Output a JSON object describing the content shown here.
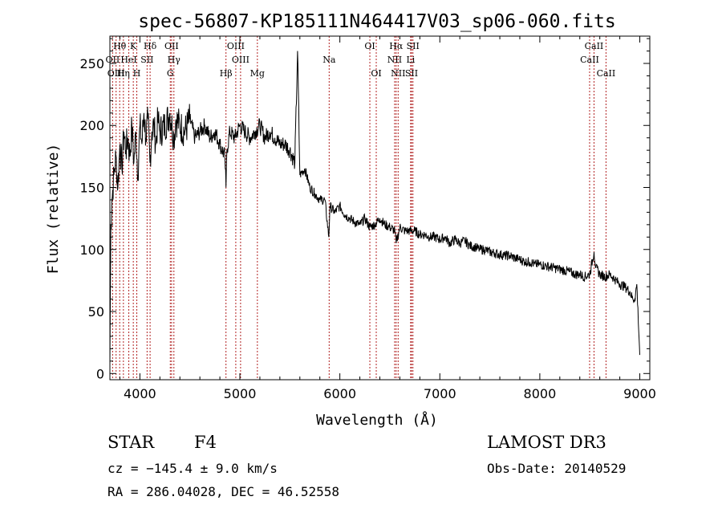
{
  "chart_data": {
    "type": "line",
    "title": "spec-56807-KP185111N464417V03_sp06-060.fits",
    "xlabel": "Wavelength (Å)",
    "ylabel": "Flux (relative)",
    "xlim": [
      3700,
      9100
    ],
    "ylim": [
      -5,
      272
    ],
    "x_ticks": [
      4000,
      5000,
      6000,
      7000,
      8000,
      9000
    ],
    "y_ticks": [
      0,
      50,
      100,
      150,
      200,
      250
    ],
    "series": [
      {
        "name": "flux",
        "x": [
          3700,
          3710,
          3720,
          3740,
          3760,
          3780,
          3800,
          3820,
          3840,
          3860,
          3880,
          3900,
          3920,
          3940,
          3960,
          3980,
          4000,
          4020,
          4040,
          4060,
          4080,
          4100,
          4120,
          4140,
          4160,
          4180,
          4200,
          4250,
          4300,
          4340,
          4360,
          4400,
          4450,
          4500,
          4550,
          4600,
          4650,
          4700,
          4750,
          4800,
          4850,
          4861,
          4870,
          4900,
          4950,
          5000,
          5050,
          5100,
          5150,
          5200,
          5250,
          5300,
          5350,
          5400,
          5450,
          5500,
          5550,
          5577,
          5600,
          5650,
          5700,
          5750,
          5800,
          5850,
          5890,
          5900,
          5950,
          6000,
          6050,
          6100,
          6150,
          6200,
          6250,
          6300,
          6350,
          6400,
          6450,
          6500,
          6550,
          6563,
          6600,
          6650,
          6700,
          6750,
          6800,
          6850,
          6900,
          6950,
          7000,
          7050,
          7100,
          7150,
          7200,
          7250,
          7300,
          7350,
          7400,
          7450,
          7500,
          7550,
          7600,
          7650,
          7700,
          7750,
          7800,
          7850,
          7900,
          7950,
          8000,
          8050,
          8100,
          8150,
          8200,
          8250,
          8300,
          8350,
          8400,
          8450,
          8500,
          8542,
          8560,
          8600,
          8650,
          8700,
          8750,
          8800,
          8850,
          8900,
          8930,
          8950,
          8970,
          9000
        ],
        "values": [
          10,
          120,
          140,
          160,
          175,
          150,
          185,
          165,
          195,
          180,
          190,
          175,
          200,
          170,
          195,
          160,
          200,
          185,
          210,
          190,
          205,
          170,
          195,
          200,
          185,
          205,
          195,
          200,
          210,
          190,
          205,
          200,
          195,
          205,
          190,
          195,
          200,
          190,
          195,
          185,
          175,
          150,
          180,
          195,
          190,
          200,
          195,
          190,
          195,
          200,
          190,
          195,
          190,
          185,
          185,
          180,
          170,
          260,
          160,
          165,
          150,
          145,
          140,
          140,
          110,
          135,
          130,
          135,
          128,
          125,
          122,
          120,
          125,
          118,
          120,
          125,
          120,
          118,
          115,
          105,
          118,
          115,
          115,
          115,
          112,
          112,
          110,
          110,
          108,
          110,
          105,
          108,
          105,
          107,
          103,
          102,
          100,
          100,
          98,
          97,
          96,
          95,
          95,
          93,
          92,
          90,
          90,
          88,
          88,
          87,
          86,
          85,
          84,
          83,
          82,
          80,
          80,
          78,
          80,
          98,
          85,
          80,
          78,
          80,
          76,
          72,
          70,
          66,
          60,
          60,
          72,
          15
        ]
      }
    ],
    "spectral_lines": [
      {
        "label": "Hθ",
        "x": 3798,
        "row": 0
      },
      {
        "label": "K",
        "x": 3934,
        "row": 0
      },
      {
        "label": "Hδ",
        "x": 4102,
        "row": 0
      },
      {
        "label": "OII",
        "x": 4317,
        "row": 0
      },
      {
        "label": "OIII",
        "x": 4959,
        "row": 0
      },
      {
        "label": "OI",
        "x": 6300,
        "row": 0
      },
      {
        "label": "Hα",
        "x": 6563,
        "row": 0
      },
      {
        "label": "SII",
        "x": 6731,
        "row": 0
      },
      {
        "label": "CaII",
        "x": 8542,
        "row": 0
      },
      {
        "label": "OII",
        "x": 3727,
        "row": 1
      },
      {
        "label": "HeI",
        "x": 3889,
        "row": 1
      },
      {
        "label": "SII",
        "x": 4072,
        "row": 1
      },
      {
        "label": "Hγ",
        "x": 4340,
        "row": 1
      },
      {
        "label": "OIII",
        "x": 5007,
        "row": 1
      },
      {
        "label": "Na",
        "x": 5893,
        "row": 1
      },
      {
        "label": "NII",
        "x": 6548,
        "row": 1
      },
      {
        "label": "Li",
        "x": 6708,
        "row": 1
      },
      {
        "label": "CaII",
        "x": 8498,
        "row": 1
      },
      {
        "label": "OIII",
        "x": 3762,
        "row": 2
      },
      {
        "label": "Hη",
        "x": 3835,
        "row": 2
      },
      {
        "label": "H",
        "x": 3969,
        "row": 2
      },
      {
        "label": "G",
        "x": 4304,
        "row": 2
      },
      {
        "label": "Hβ",
        "x": 4861,
        "row": 2
      },
      {
        "label": "Mg",
        "x": 5175,
        "row": 2
      },
      {
        "label": "OI",
        "x": 6364,
        "row": 2
      },
      {
        "label": "NII",
        "x": 6583,
        "row": 2
      },
      {
        "label": "SII",
        "x": 6717,
        "row": 2
      },
      {
        "label": "CaII",
        "x": 8662,
        "row": 2
      }
    ]
  },
  "info": {
    "object_class": "STAR",
    "subclass": "F4",
    "survey": "LAMOST DR3",
    "redshift_text": "cz = −145.4 ± 9.0 km/s",
    "obs_date": "Obs-Date: 20140529",
    "coords": "RA = 286.04028, DEC =  46.52558"
  },
  "colors": {
    "line": "#000000",
    "marker": "#b22222"
  }
}
